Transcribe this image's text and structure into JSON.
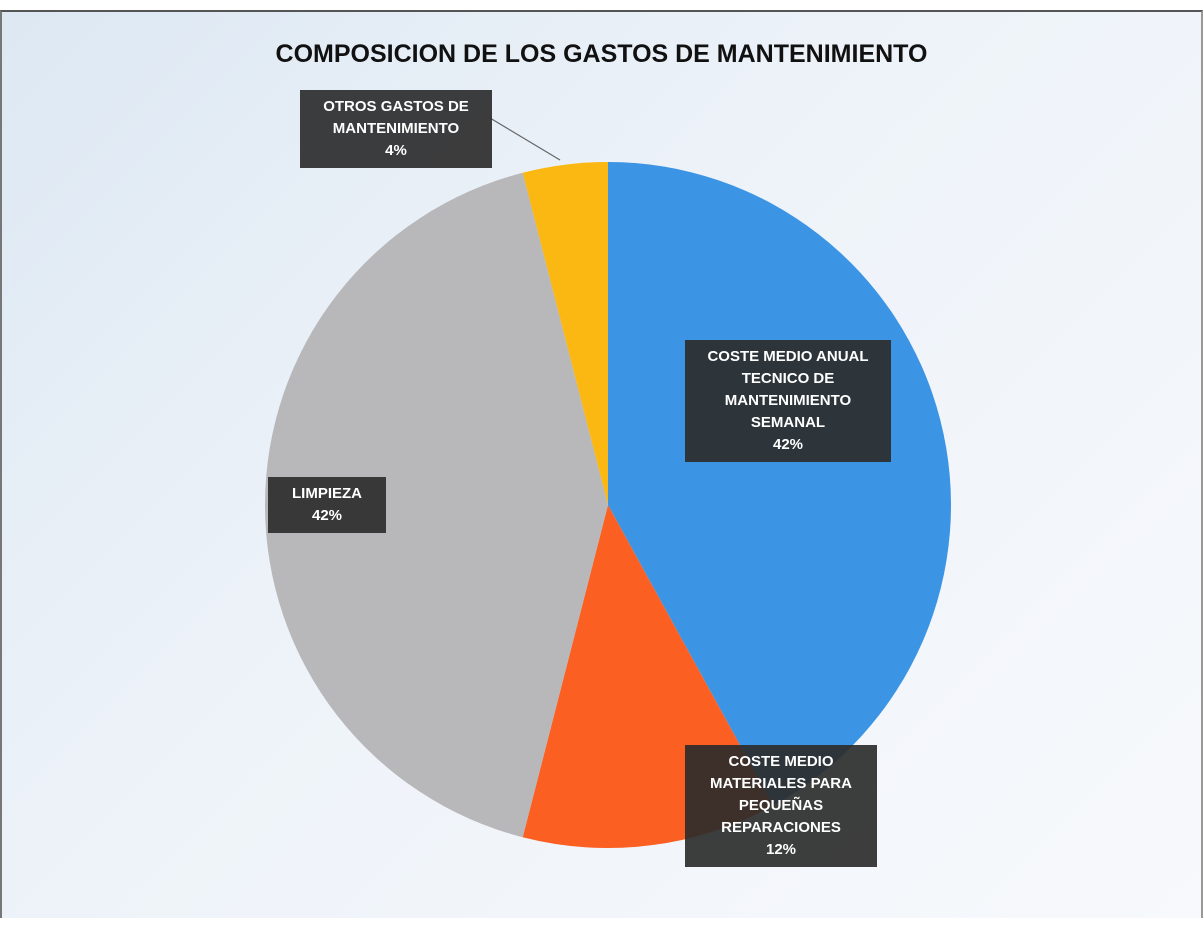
{
  "chart_data": {
    "type": "pie",
    "title": "COMPOSICION DE LOS GASTOS DE MANTENIMIENTO",
    "categories": [
      "COSTE MEDIO ANUAL TECNICO DE MANTENIMIENTO SEMANAL",
      "COSTE MEDIO MATERIALES PARA PEQUEÑAS REPARACIONES",
      "LIMPIEZA",
      "OTROS GASTOS DE MANTENIMIENTO"
    ],
    "values": [
      42,
      12,
      42,
      4
    ],
    "value_labels": [
      "42%",
      "12%",
      "42%",
      "4%"
    ],
    "colors": [
      "#3c94e4",
      "#fb5f22",
      "#b8b8ba",
      "#fbb712"
    ]
  }
}
